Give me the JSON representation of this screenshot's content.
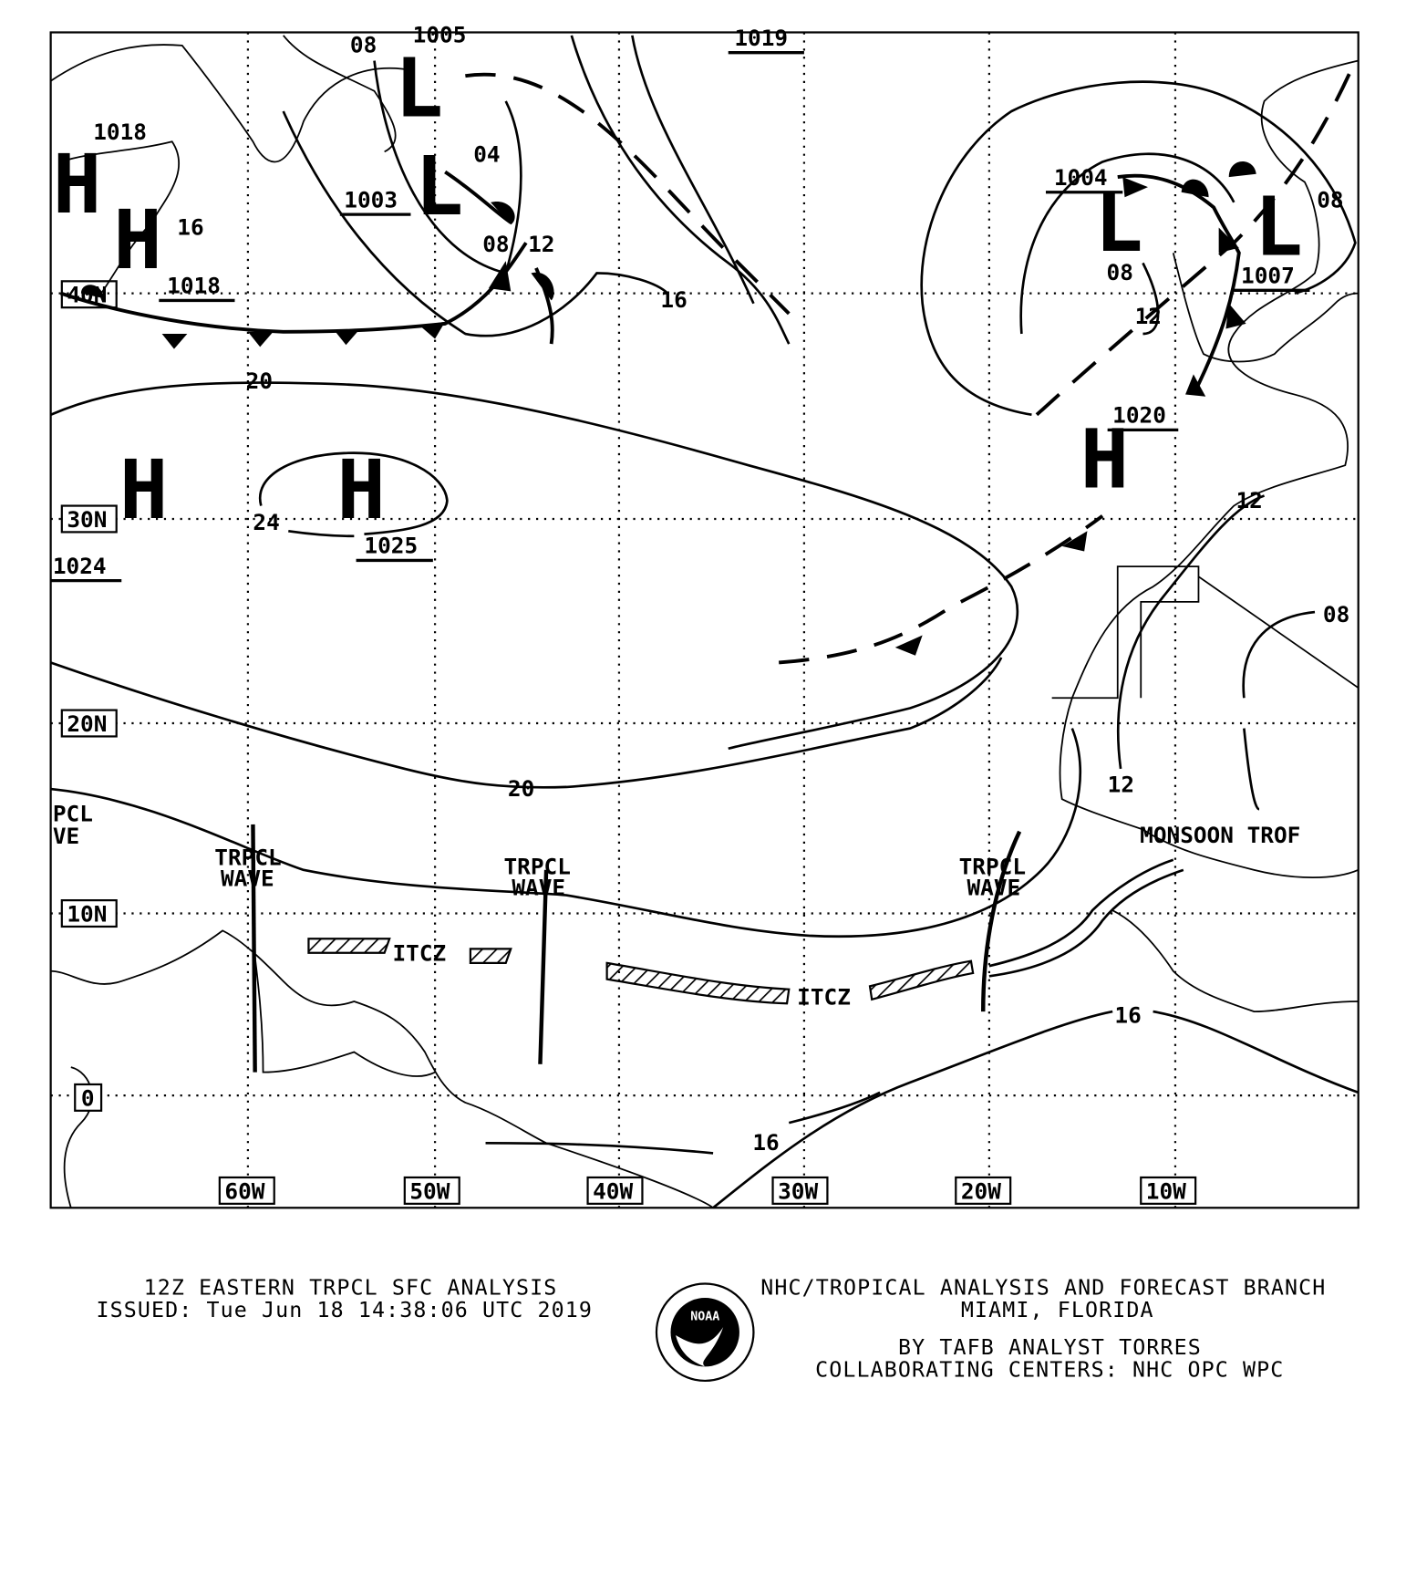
{
  "map": {
    "longitude_labels": [
      "60W",
      "50W",
      "40W",
      "30W",
      "20W",
      "10W"
    ],
    "latitude_labels": [
      "40N",
      "30N",
      "20N",
      "10N",
      "0"
    ],
    "pressure_centers": [
      {
        "type": "H",
        "value": "1018"
      },
      {
        "type": "H",
        "value": "1018"
      },
      {
        "type": "L",
        "value": "1005"
      },
      {
        "type": "L",
        "value": "1003"
      },
      {
        "type": "H",
        "value": "1025"
      },
      {
        "type": "H",
        "value": "1024"
      },
      {
        "type": "L",
        "value": "1004"
      },
      {
        "type": "L",
        "value": "1007"
      },
      {
        "type": "H",
        "value": "1020"
      },
      {
        "type": "H",
        "value": "1019"
      }
    ],
    "isobar_labels": [
      "08",
      "04",
      "16",
      "08",
      "12",
      "16",
      "20",
      "24",
      "20",
      "16",
      "16",
      "12",
      "12",
      "08",
      "08",
      "08",
      "12"
    ],
    "features": {
      "wave1": "TRPCL\nWAVE",
      "wave_line1": "TRPCL",
      "wave_line2": "WAVE",
      "itcz": "ITCZ",
      "monsoon": "MONSOON TROF",
      "pcl": "PCL",
      "ve": "VE"
    }
  },
  "footer": {
    "title": "12Z EASTERN TRPCL SFC ANALYSIS",
    "issued": "ISSUED: Tue Jun 18 14:38:06 UTC 2019",
    "branch": "NHC/TROPICAL ANALYSIS AND FORECAST BRANCH",
    "location": "MIAMI,  FLORIDA",
    "analyst": "BY TAFB ANALYST  TORRES",
    "centers": "COLLABORATING CENTERS: NHC OPC WPC",
    "logo_text": "NOAA"
  }
}
